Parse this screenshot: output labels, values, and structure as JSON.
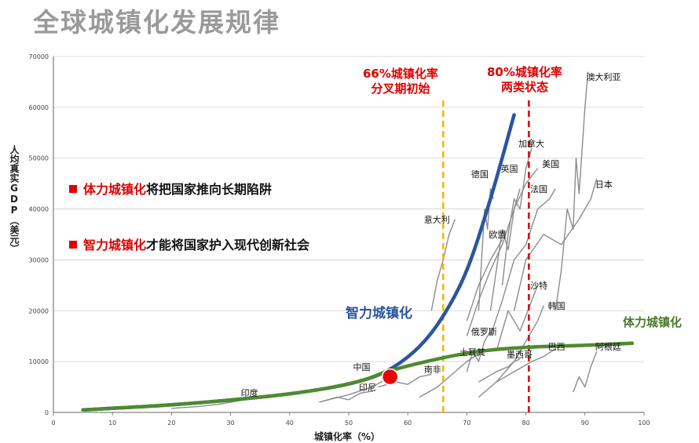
{
  "title": "全球城镇化发展规律",
  "bullets": [
    {
      "highlight": "体力城镇化",
      "rest": "将把国家推向长期陷阱"
    },
    {
      "highlight": "智力城镇化",
      "rest": "才能将国家护入现代创新社会"
    }
  ],
  "threshold_labels": {
    "v66": {
      "line1": "66%城镇化率",
      "line2": "分叉期初始"
    },
    "v80": {
      "line1": "80%城镇化率",
      "line2": "两类状态"
    }
  },
  "curve_labels": {
    "smart": "智力城镇化",
    "physical": "体力城镇化"
  },
  "colors": {
    "smart": "#2a55a0",
    "physical": "#4f8a2f",
    "threshold66": "#f5b400",
    "threshold80": "#e00000",
    "countries": "#8c8c8c",
    "marker": "#ee0000"
  },
  "chart_data": {
    "type": "line",
    "title": "全球城镇化发展规律",
    "xlabel": "城镇化率（%）",
    "ylabel": "人均真实GDP（美元）",
    "xlim": [
      0,
      100
    ],
    "ylim": [
      0,
      70000
    ],
    "x_ticks": [
      0,
      10,
      20,
      30,
      40,
      50,
      60,
      70,
      80,
      90,
      100
    ],
    "y_ticks": [
      0,
      10000,
      20000,
      30000,
      40000,
      50000,
      60000,
      70000
    ],
    "grid": true,
    "vertical_lines": [
      {
        "x": 66,
        "style": "dashed",
        "color": "orange"
      },
      {
        "x": 80.5,
        "style": "dashed",
        "color": "red"
      }
    ],
    "marker": {
      "name": "中国",
      "x": 57,
      "y": 7000
    },
    "series": [
      {
        "name": "智力城镇化",
        "x": [
          5,
          20,
          35,
          45,
          52,
          57,
          62,
          66,
          70,
          74,
          78
        ],
        "y": [
          500,
          1500,
          3000,
          4500,
          6200,
          8500,
          13000,
          19000,
          28000,
          42000,
          58500
        ]
      },
      {
        "name": "体力城镇化",
        "x": [
          5,
          20,
          35,
          45,
          52,
          57,
          65,
          72,
          80,
          90,
          98
        ],
        "y": [
          500,
          1500,
          3000,
          4500,
          6200,
          8200,
          10500,
          12000,
          12800,
          13200,
          13600
        ]
      }
    ],
    "countries": [
      {
        "name": "澳大利亚",
        "label_x": 90.5,
        "label_y": 65000,
        "x": [
          85,
          86,
          87,
          88,
          88.5,
          89,
          90,
          90.5
        ],
        "y": [
          20000,
          28000,
          40000,
          36000,
          50000,
          43000,
          60000,
          67000
        ]
      },
      {
        "name": "加拿大",
        "label_x": 79,
        "label_y": 52000,
        "x": [
          76,
          77,
          78,
          79,
          80,
          81
        ],
        "y": [
          25000,
          35000,
          42000,
          40000,
          48000,
          52000
        ]
      },
      {
        "name": "美国",
        "label_x": 83,
        "label_y": 48000,
        "x": [
          70,
          72,
          74,
          76,
          78,
          80,
          82
        ],
        "y": [
          15000,
          22000,
          28000,
          33000,
          40000,
          45000,
          48000
        ]
      },
      {
        "name": "德国",
        "label_x": 71,
        "label_y": 46000,
        "x": [
          72,
          72.5,
          73,
          73.5,
          74,
          74.5
        ],
        "y": [
          20000,
          30000,
          40000,
          36000,
          44000,
          42000
        ]
      },
      {
        "name": "英国",
        "label_x": 76,
        "label_y": 47000,
        "x": [
          74,
          75,
          76,
          77,
          78,
          79
        ],
        "y": [
          20000,
          28000,
          36000,
          32000,
          40000,
          44000
        ]
      },
      {
        "name": "法国",
        "label_x": 81,
        "label_y": 43000,
        "x": [
          74,
          76,
          78,
          80,
          82,
          84,
          85
        ],
        "y": [
          15000,
          22000,
          30000,
          33000,
          40000,
          42000,
          44000
        ]
      },
      {
        "name": "日本",
        "label_x": 92,
        "label_y": 44000,
        "x": [
          78,
          80,
          83,
          86,
          89,
          91,
          92
        ],
        "y": [
          20000,
          30000,
          35000,
          33000,
          38000,
          42000,
          46000
        ]
      },
      {
        "name": "意大利",
        "label_x": 63,
        "label_y": 37000,
        "x": [
          64,
          65,
          66,
          67,
          68
        ],
        "y": [
          20000,
          26000,
          30000,
          35000,
          38000
        ]
      },
      {
        "name": "欧盟",
        "label_x": 74,
        "label_y": 34000,
        "x": [
          70,
          72,
          74,
          76
        ],
        "y": [
          18000,
          25000,
          30000,
          34000
        ]
      },
      {
        "name": "沙特",
        "label_x": 81,
        "label_y": 24000,
        "x": [
          75,
          77,
          79,
          81,
          82
        ],
        "y": [
          12000,
          20000,
          16000,
          22000,
          25000
        ]
      },
      {
        "name": "韩国",
        "label_x": 84,
        "label_y": 20000,
        "x": [
          72,
          75,
          78,
          80,
          82,
          83
        ],
        "y": [
          3000,
          6000,
          10000,
          14000,
          18000,
          21000
        ]
      },
      {
        "name": "俄罗斯",
        "label_x": 71,
        "label_y": 15000,
        "x": [
          70,
          71,
          72,
          73,
          74
        ],
        "y": [
          8000,
          12000,
          10000,
          14000,
          16000
        ]
      },
      {
        "name": "土耳其",
        "label_x": 69,
        "label_y": 11000,
        "x": [
          62,
          65,
          68,
          70,
          72
        ],
        "y": [
          3000,
          5000,
          8000,
          10000,
          11500
        ]
      },
      {
        "name": "墨西哥",
        "label_x": 77,
        "label_y": 10500,
        "x": [
          72,
          75,
          77,
          78,
          79
        ],
        "y": [
          6000,
          8000,
          9000,
          10000,
          10500
        ]
      },
      {
        "name": "巴西",
        "label_x": 84,
        "label_y": 12000,
        "x": [
          75,
          78,
          81,
          83,
          85
        ],
        "y": [
          6000,
          8000,
          10000,
          11000,
          12500
        ]
      },
      {
        "name": "阿根廷",
        "label_x": 92,
        "label_y": 12000,
        "x": [
          88,
          89,
          90,
          91,
          92
        ],
        "y": [
          4000,
          7000,
          5000,
          9000,
          12000
        ]
      },
      {
        "name": "南非",
        "label_x": 63,
        "label_y": 7500,
        "x": [
          55,
          58,
          60,
          62,
          64
        ],
        "y": [
          5000,
          6000,
          5500,
          7000,
          7500
        ]
      },
      {
        "name": "中国",
        "label_x": 51,
        "label_y": 8000,
        "x": [
          45,
          50,
          54,
          57
        ],
        "y": [
          2000,
          3500,
          5000,
          7000
        ]
      },
      {
        "name": "印尼",
        "label_x": 52,
        "label_y": 4000,
        "x": [
          45,
          48,
          50,
          52,
          54
        ],
        "y": [
          2000,
          3000,
          2500,
          3800,
          4200
        ]
      },
      {
        "name": "印度",
        "label_x": 32,
        "label_y": 3000,
        "x": [
          20,
          25,
          28,
          30,
          32,
          34
        ],
        "y": [
          800,
          1200,
          1600,
          2000,
          2400,
          3000
        ]
      }
    ]
  }
}
